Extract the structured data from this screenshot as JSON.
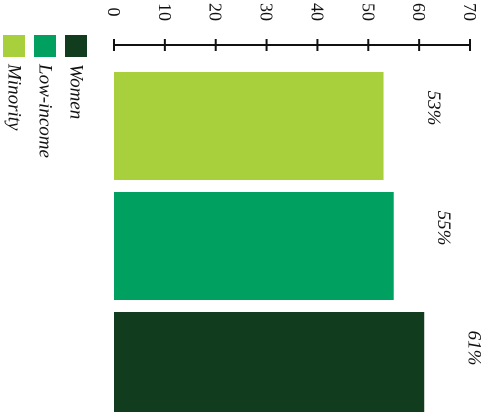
{
  "chart_data": {
    "type": "bar",
    "orientation": "horizontal",
    "categories": [
      "Minority",
      "Low-income",
      "Women"
    ],
    "values": [
      53,
      55,
      61
    ],
    "data_labels": [
      "53%",
      "55%",
      "61%"
    ],
    "colors": [
      "#a8cf3c",
      "#00a061",
      "#113d1e"
    ],
    "xlim": [
      0,
      70
    ],
    "ticks": [
      "0",
      "10",
      "20",
      "30",
      "40",
      "50",
      "60",
      "70"
    ],
    "legend": {
      "placement": "left",
      "entries": [
        {
          "label": "Women",
          "color": "#113d1e"
        },
        {
          "label": "Low-income",
          "color": "#00a061"
        },
        {
          "label": "Minority",
          "color": "#a8cf3c"
        }
      ]
    },
    "grid": false
  }
}
